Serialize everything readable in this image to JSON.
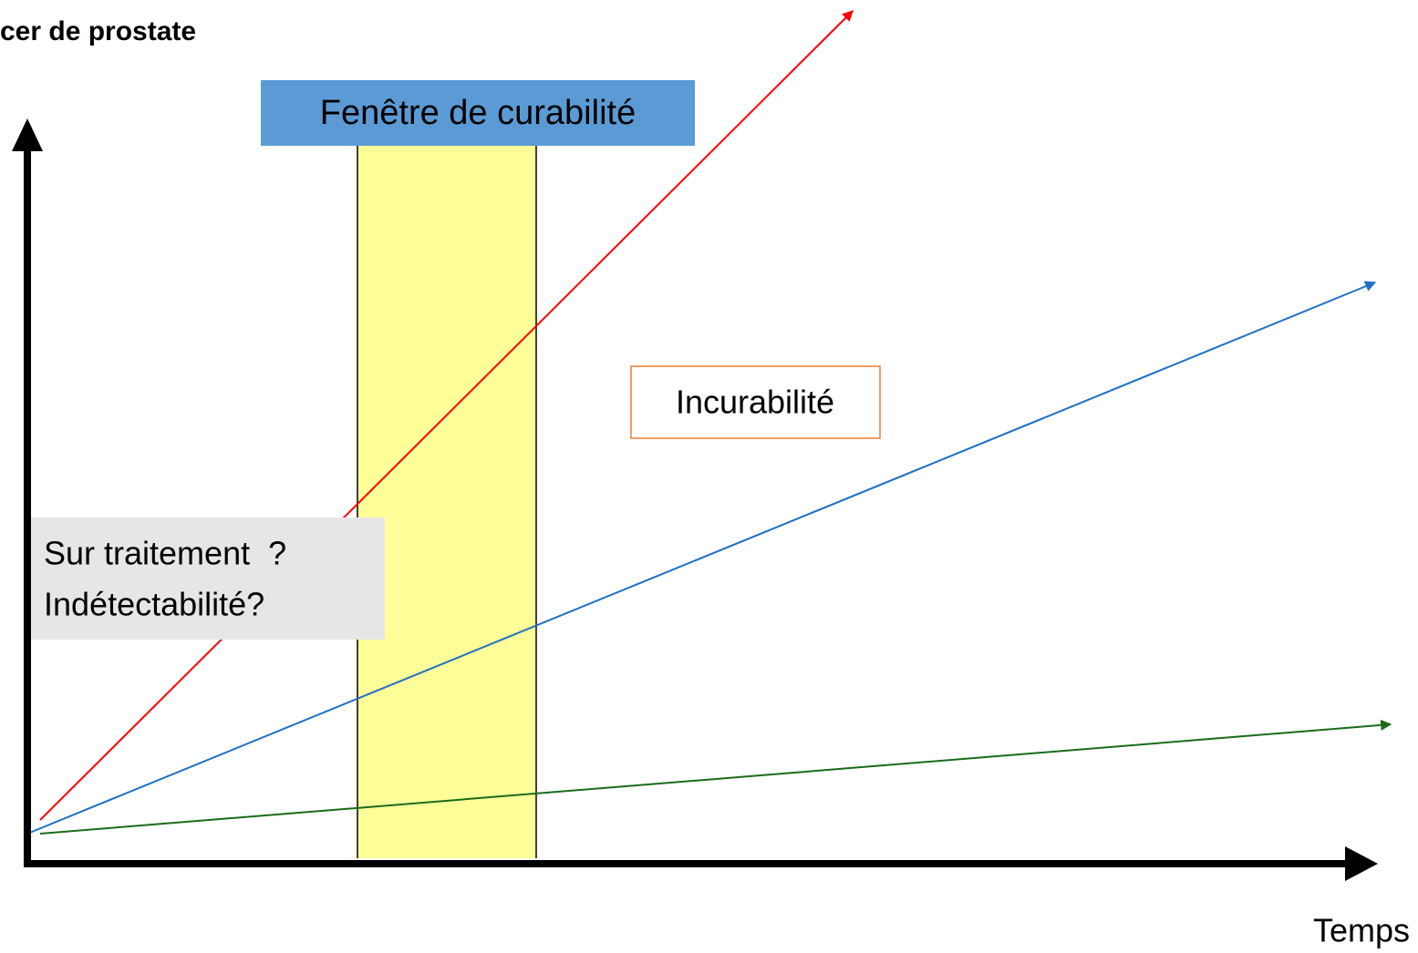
{
  "title": "cer de prostate",
  "window_label": "Fenêtre de curabilité",
  "incurable_label": "Incurabilité",
  "gray_box": {
    "line1": "Sur traitement  ?",
    "line2": "Indétectabilité?"
  },
  "x_axis_label": "Temps"
}
